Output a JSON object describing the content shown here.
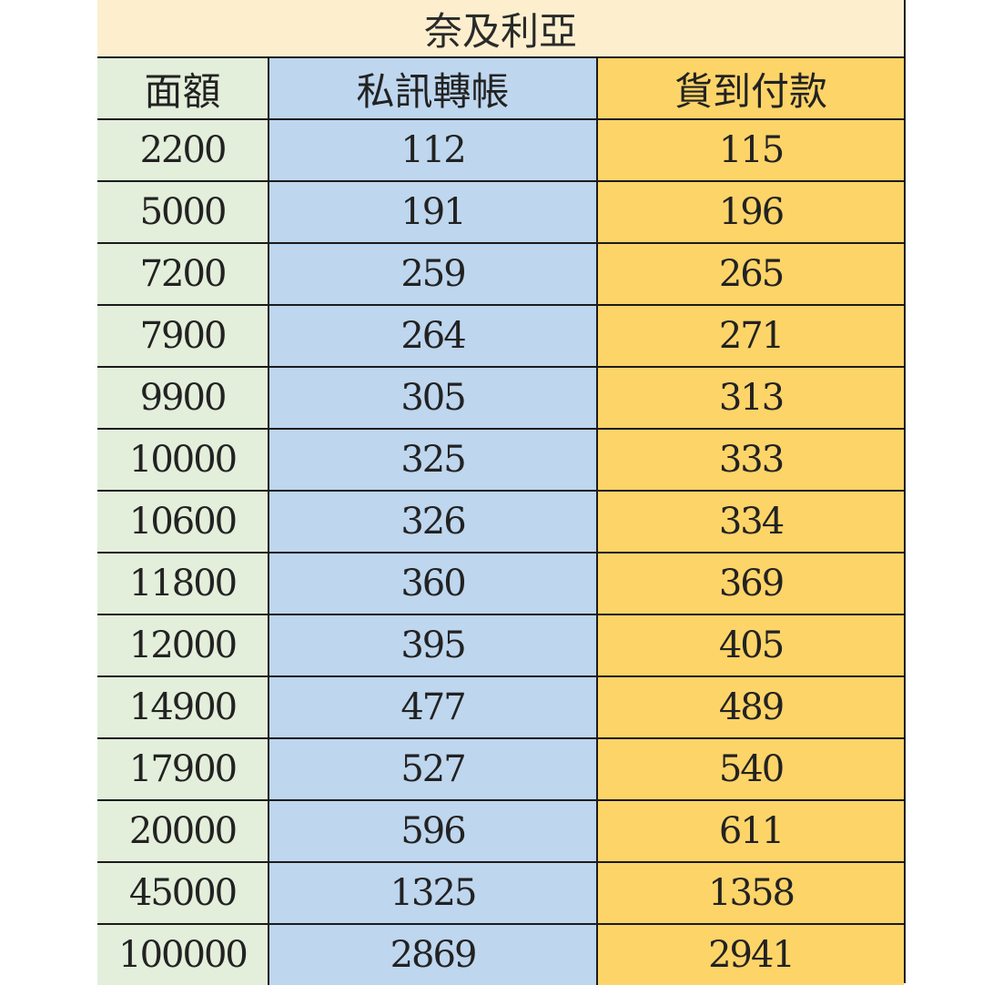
{
  "table": {
    "title": "奈及利亞",
    "headers": [
      "面額",
      "私訊轉帳",
      "貨到付款"
    ],
    "rows": [
      [
        "2200",
        "112",
        "115"
      ],
      [
        "5000",
        "191",
        "196"
      ],
      [
        "7200",
        "259",
        "265"
      ],
      [
        "7900",
        "264",
        "271"
      ],
      [
        "9900",
        "305",
        "313"
      ],
      [
        "10000",
        "325",
        "333"
      ],
      [
        "10600",
        "326",
        "334"
      ],
      [
        "11800",
        "360",
        "369"
      ],
      [
        "12000",
        "395",
        "405"
      ],
      [
        "14900",
        "477",
        "489"
      ],
      [
        "17900",
        "527",
        "540"
      ],
      [
        "20000",
        "596",
        "611"
      ],
      [
        "45000",
        "1325",
        "1358"
      ],
      [
        "100000",
        "2869",
        "2941"
      ]
    ]
  },
  "colors": {
    "title_bg": "#fdefce",
    "col_denomination_bg": "#e3eedb",
    "col_dm_transfer_bg": "#bed6ee",
    "col_cod_bg": "#fdd468",
    "border": "#1b1b1b"
  }
}
